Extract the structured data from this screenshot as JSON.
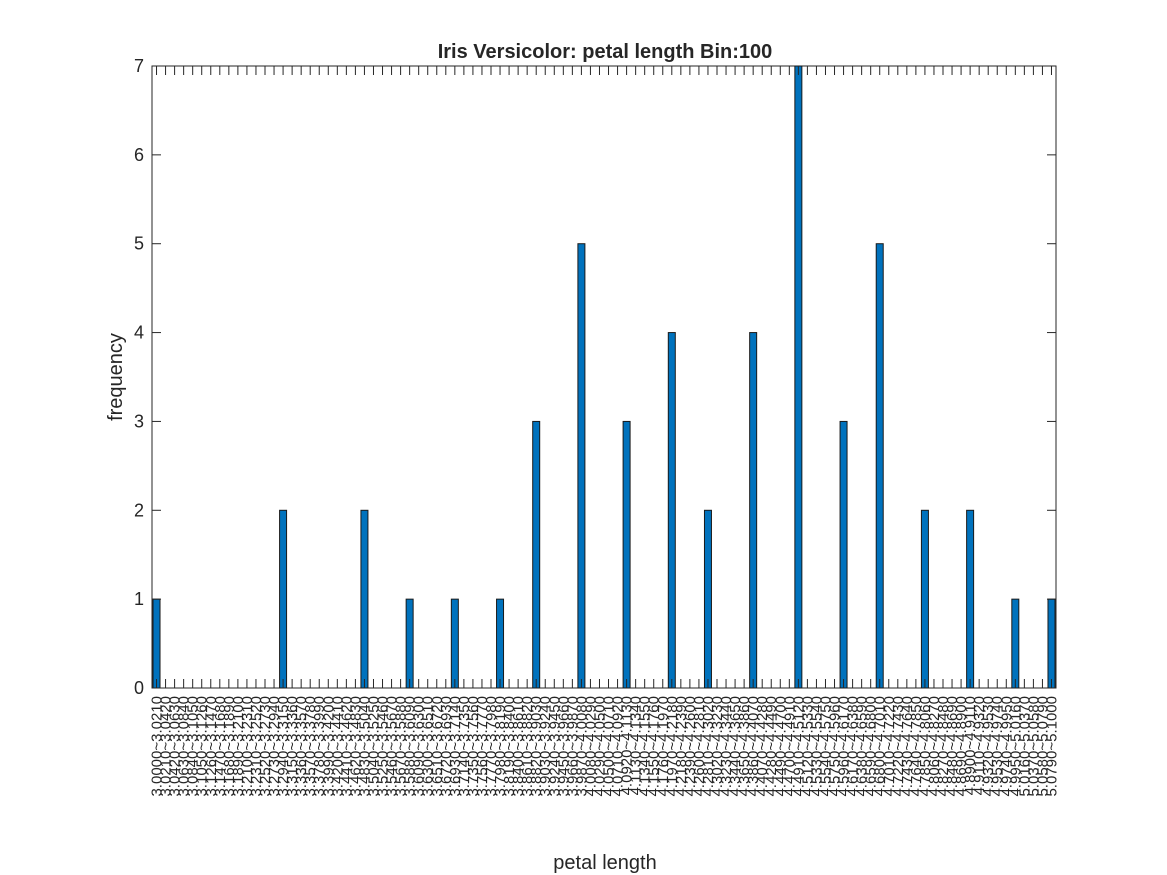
{
  "chart_data": {
    "type": "bar",
    "title": "Iris Versicolor: petal length Bin:100",
    "xlabel": "petal length",
    "ylabel": "frequency",
    "ylim": [
      0,
      7
    ],
    "yticks": [
      0,
      1,
      2,
      3,
      4,
      5,
      6,
      7
    ],
    "grid": false,
    "bar_color": "#0072BD",
    "bin_start": 3.0,
    "bin_width": 0.021,
    "bin_count": 100,
    "nonzero_bins": [
      {
        "index": 0,
        "value": 1
      },
      {
        "index": 14,
        "value": 2
      },
      {
        "index": 23,
        "value": 2
      },
      {
        "index": 28,
        "value": 1
      },
      {
        "index": 33,
        "value": 1
      },
      {
        "index": 38,
        "value": 1
      },
      {
        "index": 42,
        "value": 3
      },
      {
        "index": 47,
        "value": 5
      },
      {
        "index": 52,
        "value": 3
      },
      {
        "index": 57,
        "value": 4
      },
      {
        "index": 61,
        "value": 2
      },
      {
        "index": 66,
        "value": 4
      },
      {
        "index": 71,
        "value": 7
      },
      {
        "index": 76,
        "value": 3
      },
      {
        "index": 80,
        "value": 5
      },
      {
        "index": 85,
        "value": 2
      },
      {
        "index": 90,
        "value": 2
      },
      {
        "index": 95,
        "value": 1
      },
      {
        "index": 99,
        "value": 1
      }
    ]
  }
}
